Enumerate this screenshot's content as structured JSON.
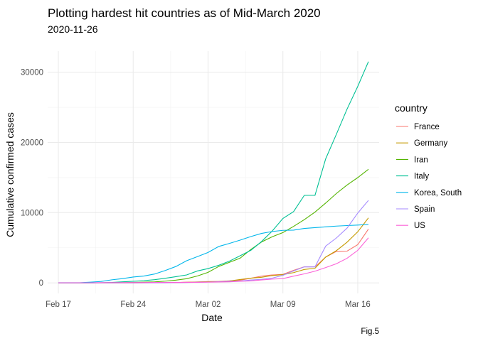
{
  "chart_data": {
    "type": "line",
    "title": "Plotting hardest hit countries as of Mid-March 2020",
    "subtitle": "2020-11-26",
    "xlabel": "Date",
    "ylabel": "Cumulative confirmed cases",
    "caption": "Fig.5",
    "legend_title": "country",
    "legend_position": "right",
    "grid": true,
    "xlim": [
      "2020-02-16",
      "2020-03-18"
    ],
    "ylim": [
      -1500,
      33000
    ],
    "x_ticks": [
      {
        "date": "2020-02-17",
        "label": "Feb 17"
      },
      {
        "date": "2020-02-24",
        "label": "Feb 24"
      },
      {
        "date": "2020-03-02",
        "label": "Mar 02"
      },
      {
        "date": "2020-03-09",
        "label": "Mar 09"
      },
      {
        "date": "2020-03-16",
        "label": "Mar 16"
      }
    ],
    "y_ticks": [
      {
        "value": 0,
        "label": "0"
      },
      {
        "value": 10000,
        "label": "10000"
      },
      {
        "value": 20000,
        "label": "20000"
      },
      {
        "value": 30000,
        "label": "30000"
      }
    ],
    "x": [
      "2020-02-17",
      "2020-02-18",
      "2020-02-19",
      "2020-02-20",
      "2020-02-21",
      "2020-02-22",
      "2020-02-23",
      "2020-02-24",
      "2020-02-25",
      "2020-02-26",
      "2020-02-27",
      "2020-02-28",
      "2020-02-29",
      "2020-03-01",
      "2020-03-02",
      "2020-03-03",
      "2020-03-04",
      "2020-03-05",
      "2020-03-06",
      "2020-03-07",
      "2020-03-08",
      "2020-03-09",
      "2020-03-10",
      "2020-03-11",
      "2020-03-12",
      "2020-03-13",
      "2020-03-14",
      "2020-03-15",
      "2020-03-16",
      "2020-03-17"
    ],
    "series": [
      {
        "name": "France",
        "color": "#F8766D",
        "values": [
          12,
          12,
          12,
          12,
          12,
          12,
          12,
          12,
          14,
          18,
          38,
          57,
          100,
          130,
          191,
          204,
          288,
          380,
          656,
          957,
          1130,
          1212,
          1784,
          2284,
          2284,
          3667,
          4480,
          4520,
          5440,
          7660
        ]
      },
      {
        "name": "Germany",
        "color": "#C49A00",
        "values": [
          16,
          16,
          16,
          16,
          16,
          16,
          16,
          16,
          17,
          27,
          46,
          48,
          79,
          130,
          159,
          196,
          262,
          482,
          670,
          800,
          1040,
          1176,
          1457,
          1908,
          2078,
          3675,
          4585,
          5795,
          7272,
          9257
        ]
      },
      {
        "name": "Iran",
        "color": "#53B400",
        "values": [
          0,
          0,
          2,
          5,
          18,
          28,
          43,
          61,
          95,
          139,
          245,
          388,
          593,
          978,
          1501,
          2336,
          2922,
          3513,
          4747,
          5823,
          6566,
          7161,
          8042,
          9000,
          10075,
          11364,
          12729,
          13938,
          14991,
          16169
        ]
      },
      {
        "name": "Italy",
        "color": "#00C094",
        "values": [
          3,
          3,
          3,
          3,
          20,
          62,
          155,
          229,
          322,
          453,
          655,
          888,
          1128,
          1694,
          2036,
          2502,
          3089,
          3858,
          4636,
          5883,
          7375,
          9172,
          10149,
          12462,
          12462,
          17660,
          21157,
          24747,
          27980,
          31506
        ]
      },
      {
        "name": "Korea, South",
        "color": "#00B6EB",
        "values": [
          30,
          31,
          31,
          104,
          204,
          433,
          602,
          833,
          977,
          1261,
          1766,
          2337,
          3150,
          3736,
          4335,
          5186,
          5621,
          6088,
          6593,
          7041,
          7314,
          7478,
          7513,
          7755,
          7869,
          7979,
          8086,
          8162,
          8236,
          8320
        ]
      },
      {
        "name": "Spain",
        "color": "#A58AFF",
        "values": [
          2,
          2,
          2,
          2,
          2,
          2,
          2,
          2,
          6,
          13,
          15,
          32,
          45,
          84,
          120,
          165,
          222,
          259,
          400,
          500,
          673,
          1073,
          1695,
          2277,
          2277,
          5232,
          6391,
          7798,
          9942,
          11748
        ]
      },
      {
        "name": "US",
        "color": "#FB61D7",
        "values": [
          15,
          15,
          15,
          15,
          35,
          35,
          35,
          53,
          53,
          59,
          60,
          62,
          70,
          76,
          101,
          122,
          153,
          221,
          278,
          417,
          537,
          605,
          959,
          1281,
          1663,
          2179,
          2726,
          3499,
          4632,
          6421
        ]
      }
    ]
  }
}
